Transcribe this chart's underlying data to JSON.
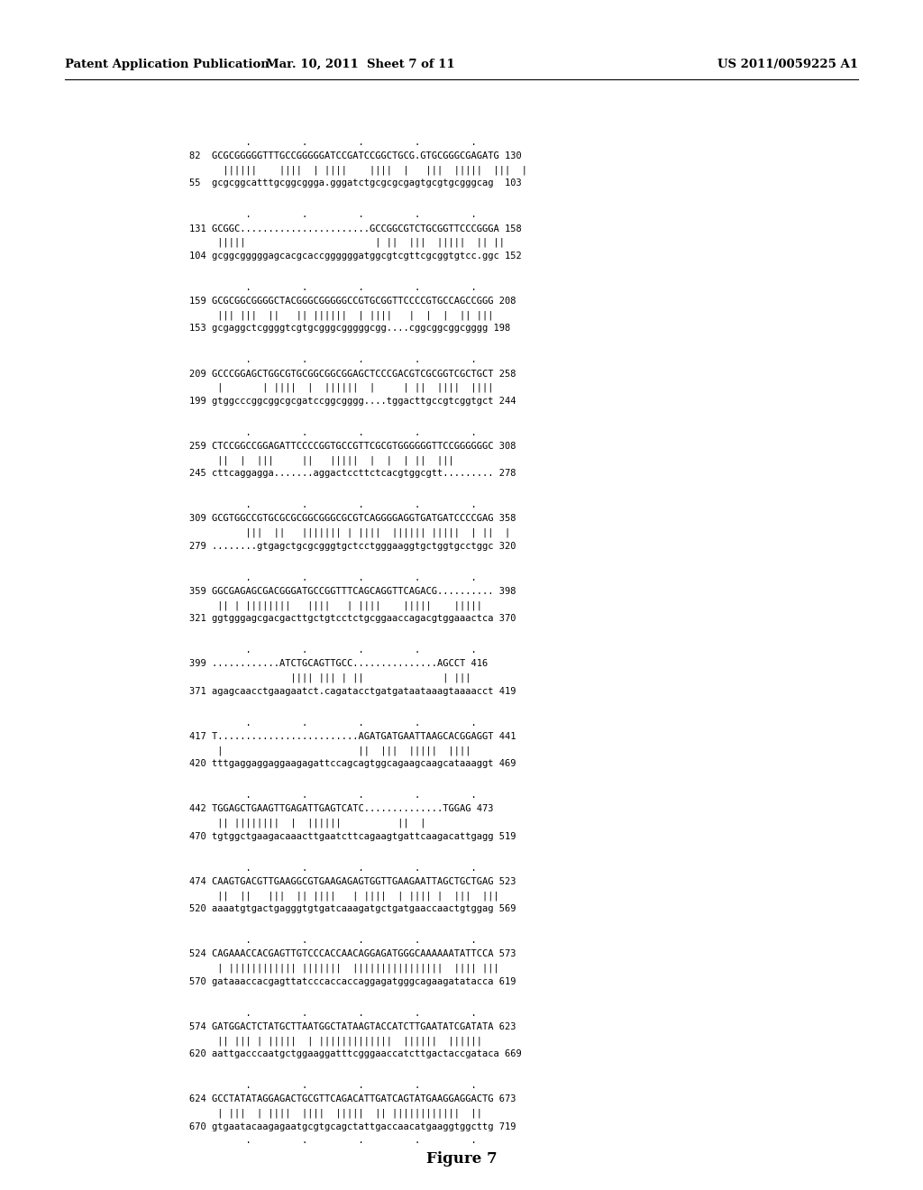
{
  "header_left": "Patent Application Publication",
  "header_mid": "Mar. 10, 2011  Sheet 7 of 11",
  "header_right": "US 2011/0059225 A1",
  "figure_label": "Figure 7",
  "tick_str": "          .         .         .         .         .",
  "blocks": [
    {
      "seq1": "82  GCGCGGGGGTTTGCCGGGGGATCCGATCCGGCTGCG.GTGCGGGCGAGATG 130",
      "match": "      ||||||    ||||  | ||||    ||||  |   |||  |||||  |||  |",
      "seq2": "55  gcgcggcatttgcggcggga.gggatctgcgcgcgagtgcgtgcgggcag  103"
    },
    {
      "seq1": "131 GCGGC.......................GCCGGCGTCTGCGGTTCCCGGGA 158",
      "match": "     |||||                       | ||  |||  |||||  || ||",
      "seq2": "104 gcggcgggggagcacgcaccggggggatggcgtcgttcgcggtgtcc.ggc 152"
    },
    {
      "seq1": "159 GCGCGGCGGGGCTACGGGCGGGGGCCGTGCGGTTCCCCGTGCCAGCCGGG 208",
      "match": "     ||| |||  ||   || ||||||  | ||||   |  |  |  || |||",
      "seq2": "153 gcgaggctcggggtcgtgcgggcgggggcgg....cggcggcggcgggg 198"
    },
    {
      "seq1": "209 GCCCGGAGCTGGCGTGCGGCGGCGGAGCTCCCGACGTCGCGGTCGCTGCT 258",
      "match": "     |       | ||||  |  ||||||  |     | ||  ||||  ||||",
      "seq2": "199 gtggcccggcggcgcgatccggcgggg....tggacttgccgtcggtgct 244"
    },
    {
      "seq1": "259 CTCCGGCCGGAGATTCCCCGGTGCCGTTCGCGTGGGGGGTTCCGGGGGGC 308",
      "match": "     ||  |  |||     ||   |||||  |  |  | ||  |||",
      "seq2": "245 cttcaggagga.......aggactccttctcacgtggcgtt......... 278"
    },
    {
      "seq1": "309 GCGTGGCCGTGCGCGCGGCGGGCGCGTCAGGGGAGGTGATGATCCCCGAG 358",
      "match": "          |||  ||   ||||||| | ||||  |||||| |||||  | ||  |",
      "seq2": "279 ........gtgagctgcgcgggtgctcctgggaaggtgctggtgcctggc 320"
    },
    {
      "seq1": "359 GGCGAGAGCGACGGGATGCCGGTTTCAGCAGGTTCAGACG.......... 398",
      "match": "     || | ||||||||   ||||   | ||||    |||||    |||||",
      "seq2": "321 ggtgggagcgacgacttgctgtcctctgcggaaccagacgtggaaactca 370"
    },
    {
      "seq1": "399 ............ATCTGCAGTTGCC...............AGCCT 416",
      "match": "                  |||| ||| | ||              | |||",
      "seq2": "371 agagcaacctgaagaatct.cagatacctgatgataataaagtaaaacct 419"
    },
    {
      "seq1": "417 T.........................AGATGATGAATTAAGCACGGAGGT 441",
      "match": "     |                        ||  |||  |||||  ||||",
      "seq2": "420 tttgaggaggaggaagagattccagcagtggcagaagcaagcataaaggt 469"
    },
    {
      "seq1": "442 TGGAGCTGAAGTTGAGATTGAGTCATC..............TGGAG 473",
      "match": "     || ||||||||  |  ||||||          ||  |",
      "seq2": "470 tgtggctgaagacaaacttgaatcttcagaagtgattcaagacattgagg 519"
    },
    {
      "seq1": "474 CAAGTGACGTTGAAGGCGTGAAGAGAGTGGTTGAAGAATTAGCTGCTGAG 523",
      "match": "     ||  ||   |||  || ||||   | ||||  | |||| |  |||  |||",
      "seq2": "520 aaaatgtgactgagggtgtgatcaaagatgctgatgaaccaactgtggag 569"
    },
    {
      "seq1": "524 CAGAAACCACGAGTTGTCCCACCAACAGGAGATGGGCAAAAAATATTCCA 573",
      "match": "     | |||||||||||| |||||||  ||||||||||||||||  |||| |||",
      "seq2": "570 gataaaccacgagttatcccaccaccaggagatgggcagaagatatacca 619"
    },
    {
      "seq1": "574 GATGGACTCTATGCTTAATGGCTATAAGTACCATCTTGAATATCGATATA 623",
      "match": "     || ||| | |||||  | |||||||||||||  ||||||  ||||||",
      "seq2": "620 aattgacccaatgctggaaggatttcgggaaccatcttgactaccgataca 669"
    },
    {
      "seq1": "624 GCCTATATAGGAGACTGCGTTCAGACATTGATCAGTATGAAGGAGGACTG 673",
      "match": "     | |||  | ||||  ||||  |||||  || ||||||||||||  ||",
      "seq2": "670 gtgaatacaagagaatgcgtgcagctattgaccaacatgaaggtggcttg 719"
    }
  ]
}
